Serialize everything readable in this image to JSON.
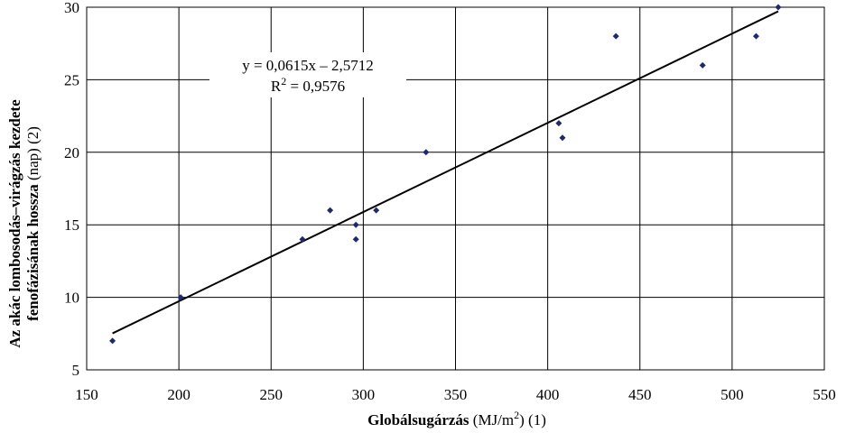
{
  "chart_data": {
    "type": "scatter",
    "x_axis": {
      "label_bold": "Globálsugárzás",
      "label_normal": " (MJ/m",
      "label_sup": "2",
      "label_tail": ") (1)",
      "min": 150,
      "max": 550,
      "ticks": [
        150,
        200,
        250,
        300,
        350,
        400,
        450,
        500,
        550
      ]
    },
    "y_axis": {
      "label_line1_bold": "Az akác lombosodás–virágzás kezdete",
      "label_line2_bold": "fenofázisának hossza",
      "label_line2_normal": " (nap) (2)",
      "min": 5,
      "max": 30,
      "ticks": [
        5,
        10,
        15,
        20,
        25,
        30
      ]
    },
    "grid": true,
    "series": [
      {
        "points": [
          [
            164,
            7
          ],
          [
            201,
            10
          ],
          [
            267,
            14
          ],
          [
            282,
            16
          ],
          [
            296,
            15
          ],
          [
            296,
            14
          ],
          [
            307,
            16
          ],
          [
            334,
            20
          ],
          [
            406,
            22
          ],
          [
            408,
            21
          ],
          [
            437,
            28
          ],
          [
            484,
            26
          ],
          [
            513,
            28
          ],
          [
            525,
            30
          ]
        ],
        "color": "#1f2a6b"
      }
    ],
    "trendline": {
      "slope": 0.0615,
      "intercept": -2.5712,
      "x_start": 164,
      "x_end": 525,
      "equation": "y = 0,0615x – 2,5712",
      "r2_prefix": "R",
      "r2_sup": "2",
      "r2_suffix": " = 0,9576"
    }
  }
}
